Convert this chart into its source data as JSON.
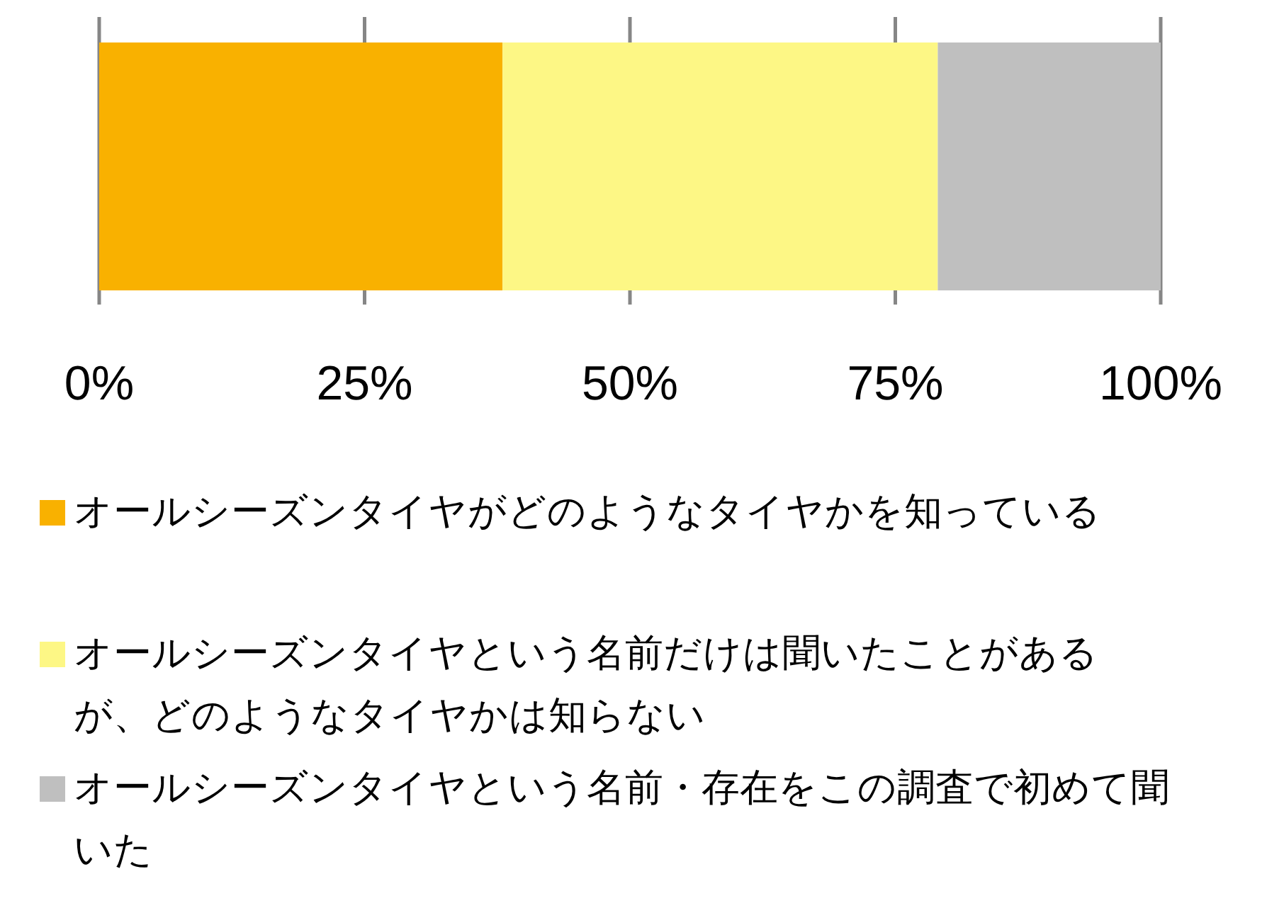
{
  "chart_data": {
    "type": "bar",
    "orientation": "horizontal",
    "stacked": true,
    "categories": [
      null
    ],
    "series": [
      {
        "name": "オールシーズンタイヤがどのようなタイヤかを知っている",
        "color": "#f9b100",
        "values": [
          38
        ]
      },
      {
        "name": "オールシーズンタイヤという名前だけは聞いたことがあるが、どのようなタイヤかは知らない",
        "color": "#fdf785",
        "values": [
          41
        ]
      },
      {
        "name": "オールシーズンタイヤという名前・存在をこの調査で初めて聞いた",
        "color": "#bfbfbf",
        "values": [
          21
        ]
      }
    ],
    "xlim": [
      0,
      100
    ],
    "xticks": [
      {
        "value": 0,
        "label": "0%"
      },
      {
        "value": 25,
        "label": "25%"
      },
      {
        "value": 50,
        "label": "50%"
      },
      {
        "value": 75,
        "label": "75%"
      },
      {
        "value": 100,
        "label": "100%"
      }
    ],
    "grid": "x",
    "legend": "bottom"
  }
}
